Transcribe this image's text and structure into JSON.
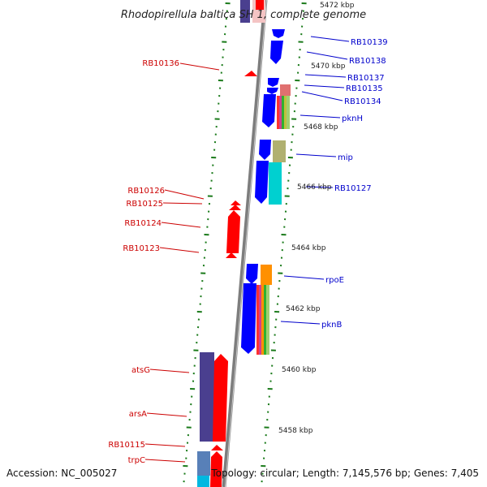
{
  "title": "Rhodopirellula baltica SH 1, complete genome",
  "footer": {
    "accession": "Accession: NC_005027",
    "topology": "Topology: circular; Length: 7,145,576 bp; Genes: 7,405"
  },
  "colors": {
    "backbone": "#808080",
    "forward_gene": "#0000ff",
    "reverse_gene": "#ff0000",
    "label_forward": "#0000cc",
    "label_reverse": "#cc0000",
    "tick": "#1a7a1a"
  },
  "scale_labels": [
    "5472 kbp",
    "5470 kbp",
    "5468 kbp",
    "5466 kbp",
    "5464 kbp",
    "5462 kbp",
    "5460 kbp",
    "5458 kbp"
  ],
  "gene_labels_right": [
    "RB10139",
    "RB10138",
    "RB10137",
    "RB10135",
    "RB10134",
    "pknH",
    "mip",
    "RB10127",
    "rpoE",
    "pknB"
  ],
  "gene_labels_left": [
    "RB10136",
    "RB10126",
    "RB10125",
    "RB10124",
    "RB10123",
    "atsG",
    "arsA",
    "RB10115",
    "trpC"
  ]
}
